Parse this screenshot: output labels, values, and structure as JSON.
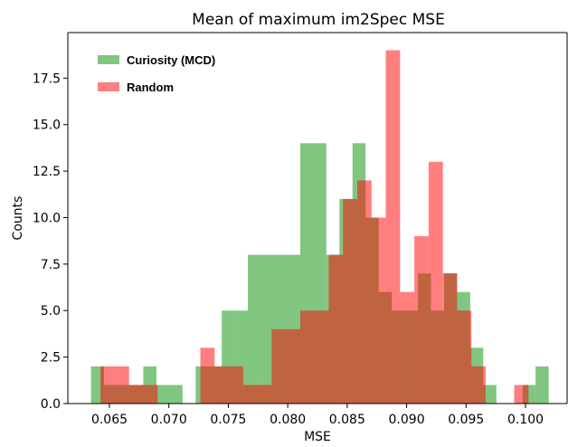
{
  "chart_data": {
    "type": "bar",
    "chart_kind": "histogram",
    "title": "Mean of maximum im2Spec MSE",
    "xlabel": "MSE",
    "ylabel": "Counts",
    "xlim": [
      0.0615,
      0.1035
    ],
    "ylim": [
      0,
      19.95
    ],
    "xticks": [
      0.065,
      0.07,
      0.075,
      0.08,
      0.085,
      0.09,
      0.095,
      0.1
    ],
    "xtick_labels": [
      "0.065",
      "0.070",
      "0.075",
      "0.080",
      "0.085",
      "0.090",
      "0.095",
      "0.100"
    ],
    "yticks": [
      0.0,
      2.5,
      5.0,
      7.5,
      10.0,
      12.5,
      15.0,
      17.5
    ],
    "ytick_labels": [
      "0.0",
      "2.5",
      "5.0",
      "7.5",
      "10.0",
      "12.5",
      "15.0",
      "17.5"
    ],
    "grid": false,
    "legend_position": "top-left",
    "series": [
      {
        "name": "Curiosity (MCD)",
        "color": "#2ca02c",
        "opacity": 0.6,
        "bins": [
          {
            "x0": 0.06345,
            "x1": 0.06455,
            "count": 2
          },
          {
            "x0": 0.06455,
            "x1": 0.06565,
            "count": 1
          },
          {
            "x0": 0.06565,
            "x1": 0.06675,
            "count": 1
          },
          {
            "x0": 0.06675,
            "x1": 0.06785,
            "count": 1
          },
          {
            "x0": 0.06785,
            "x1": 0.06895,
            "count": 2
          },
          {
            "x0": 0.06895,
            "x1": 0.07005,
            "count": 1
          },
          {
            "x0": 0.07005,
            "x1": 0.07115,
            "count": 1
          },
          {
            "x0": 0.07115,
            "x1": 0.07225,
            "count": 0
          },
          {
            "x0": 0.07225,
            "x1": 0.07335,
            "count": 2
          },
          {
            "x0": 0.07335,
            "x1": 0.07445,
            "count": 2
          },
          {
            "x0": 0.07445,
            "x1": 0.07555,
            "count": 5
          },
          {
            "x0": 0.07555,
            "x1": 0.07665,
            "count": 5
          },
          {
            "x0": 0.07665,
            "x1": 0.07775,
            "count": 8
          },
          {
            "x0": 0.07775,
            "x1": 0.07885,
            "count": 8
          },
          {
            "x0": 0.07885,
            "x1": 0.07995,
            "count": 8
          },
          {
            "x0": 0.07995,
            "x1": 0.08105,
            "count": 8
          },
          {
            "x0": 0.08105,
            "x1": 0.08215,
            "count": 14
          },
          {
            "x0": 0.08215,
            "x1": 0.08325,
            "count": 14
          },
          {
            "x0": 0.08325,
            "x1": 0.08435,
            "count": 8
          },
          {
            "x0": 0.08435,
            "x1": 0.08545,
            "count": 11
          },
          {
            "x0": 0.08545,
            "x1": 0.08655,
            "count": 14
          },
          {
            "x0": 0.08655,
            "x1": 0.08765,
            "count": 10
          },
          {
            "x0": 0.08765,
            "x1": 0.08875,
            "count": 6
          },
          {
            "x0": 0.08875,
            "x1": 0.08985,
            "count": 5
          },
          {
            "x0": 0.08985,
            "x1": 0.09095,
            "count": 5
          },
          {
            "x0": 0.09095,
            "x1": 0.09205,
            "count": 7
          },
          {
            "x0": 0.09205,
            "x1": 0.09315,
            "count": 5
          },
          {
            "x0": 0.09315,
            "x1": 0.09425,
            "count": 7
          },
          {
            "x0": 0.09425,
            "x1": 0.09535,
            "count": 6
          },
          {
            "x0": 0.09535,
            "x1": 0.09645,
            "count": 3
          },
          {
            "x0": 0.09645,
            "x1": 0.09755,
            "count": 1
          },
          {
            "x0": 0.09755,
            "x1": 0.09865,
            "count": 0
          },
          {
            "x0": 0.09865,
            "x1": 0.09975,
            "count": 0
          },
          {
            "x0": 0.09975,
            "x1": 0.10085,
            "count": 1
          },
          {
            "x0": 0.10085,
            "x1": 0.10195,
            "count": 2
          }
        ]
      },
      {
        "name": "Random",
        "color": "#ff0000",
        "opacity": 0.5,
        "bins": [
          {
            "x0": 0.06425,
            "x1": 0.06545,
            "count": 2
          },
          {
            "x0": 0.06545,
            "x1": 0.06665,
            "count": 2
          },
          {
            "x0": 0.06665,
            "x1": 0.06785,
            "count": 1
          },
          {
            "x0": 0.06785,
            "x1": 0.06905,
            "count": 1
          },
          {
            "x0": 0.06905,
            "x1": 0.07025,
            "count": 0
          },
          {
            "x0": 0.07025,
            "x1": 0.07145,
            "count": 0
          },
          {
            "x0": 0.07145,
            "x1": 0.07265,
            "count": 0
          },
          {
            "x0": 0.07265,
            "x1": 0.07385,
            "count": 3
          },
          {
            "x0": 0.07385,
            "x1": 0.07505,
            "count": 2
          },
          {
            "x0": 0.07505,
            "x1": 0.07625,
            "count": 2
          },
          {
            "x0": 0.07625,
            "x1": 0.07745,
            "count": 1
          },
          {
            "x0": 0.07745,
            "x1": 0.07865,
            "count": 1
          },
          {
            "x0": 0.07865,
            "x1": 0.07985,
            "count": 4
          },
          {
            "x0": 0.07985,
            "x1": 0.08105,
            "count": 4
          },
          {
            "x0": 0.08105,
            "x1": 0.08225,
            "count": 5
          },
          {
            "x0": 0.08225,
            "x1": 0.08345,
            "count": 5
          },
          {
            "x0": 0.08345,
            "x1": 0.08465,
            "count": 8
          },
          {
            "x0": 0.08465,
            "x1": 0.08585,
            "count": 11
          },
          {
            "x0": 0.08585,
            "x1": 0.08705,
            "count": 12
          },
          {
            "x0": 0.08705,
            "x1": 0.08825,
            "count": 10
          },
          {
            "x0": 0.08825,
            "x1": 0.08945,
            "count": 19
          },
          {
            "x0": 0.08945,
            "x1": 0.09065,
            "count": 6
          },
          {
            "x0": 0.09065,
            "x1": 0.09185,
            "count": 9
          },
          {
            "x0": 0.09185,
            "x1": 0.09305,
            "count": 13
          },
          {
            "x0": 0.09305,
            "x1": 0.09425,
            "count": 7
          },
          {
            "x0": 0.09425,
            "x1": 0.09545,
            "count": 5
          },
          {
            "x0": 0.09545,
            "x1": 0.09665,
            "count": 2
          },
          {
            "x0": 0.09665,
            "x1": 0.09785,
            "count": 0
          },
          {
            "x0": 0.09785,
            "x1": 0.09905,
            "count": 0
          },
          {
            "x0": 0.09905,
            "x1": 0.10025,
            "count": 1
          }
        ]
      }
    ]
  }
}
